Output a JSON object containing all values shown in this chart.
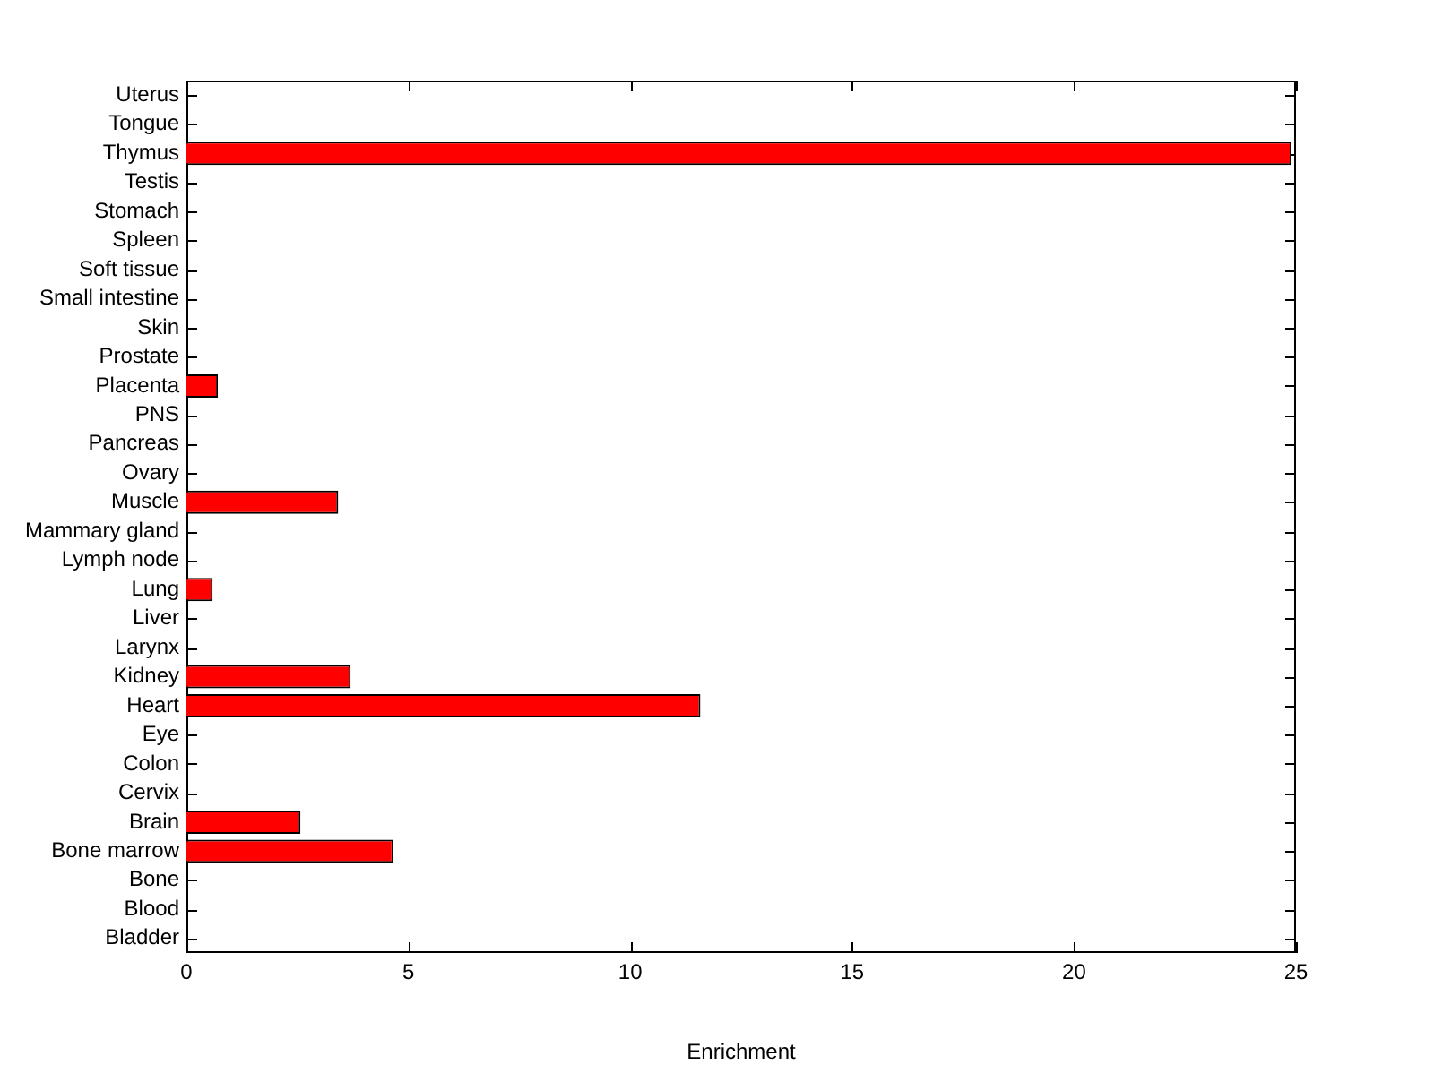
{
  "chart_data": {
    "type": "bar",
    "orientation": "horizontal",
    "xlabel": "Enrichment",
    "categories": [
      "Uterus",
      "Tongue",
      "Thymus",
      "Testis",
      "Stomach",
      "Spleen",
      "Soft tissue",
      "Small intestine",
      "Skin",
      "Prostate",
      "Placenta",
      "PNS",
      "Pancreas",
      "Ovary",
      "Muscle",
      "Mammary gland",
      "Lymph node",
      "Lung",
      "Liver",
      "Larynx",
      "Kidney",
      "Heart",
      "Eye",
      "Colon",
      "Cervix",
      "Brain",
      "Bone marrow",
      "Bone",
      "Blood",
      "Bladder"
    ],
    "values": [
      0,
      0,
      24.9,
      0,
      0,
      0,
      0,
      0,
      0,
      0,
      0.71,
      0,
      0,
      0,
      3.42,
      0,
      0,
      0.59,
      0,
      0,
      3.7,
      11.58,
      0,
      0,
      0,
      2.57,
      4.66,
      0,
      0,
      0
    ],
    "color": "#ff0000",
    "xlim": [
      0,
      25
    ],
    "xticks": [
      0,
      5,
      10,
      15,
      20,
      25
    ],
    "grid": false,
    "legend": false
  }
}
